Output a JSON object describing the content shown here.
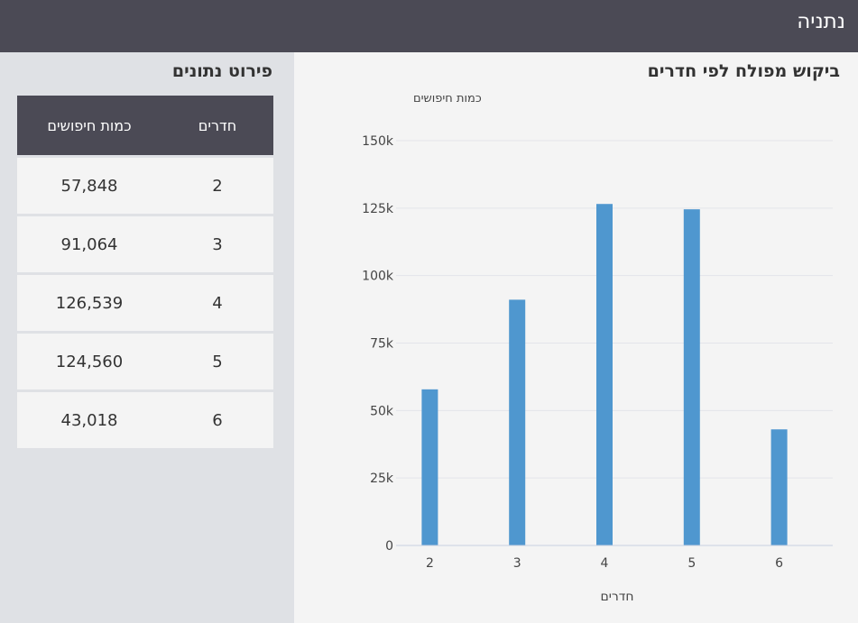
{
  "header": {
    "city": "נתניה"
  },
  "side": {
    "title": "פירוט נתונים",
    "columns": {
      "rooms": "חדרים",
      "count": "כמות חיפושים"
    },
    "rows": [
      {
        "rooms": "2",
        "count": "57,848"
      },
      {
        "rooms": "3",
        "count": "91,064"
      },
      {
        "rooms": "4",
        "count": "126,539"
      },
      {
        "rooms": "5",
        "count": "124,560"
      },
      {
        "rooms": "6",
        "count": "43,018"
      }
    ]
  },
  "chart_data": {
    "type": "bar",
    "title": "ביקוש מפולח לפי חדרים",
    "xlabel": "חדרים",
    "ylabel": "כמות חיפושים",
    "categories": [
      "2",
      "3",
      "4",
      "5",
      "6"
    ],
    "values": [
      57848,
      91064,
      126539,
      124560,
      43018
    ],
    "ylim": [
      0,
      150000
    ],
    "yticks": [
      0,
      25000,
      50000,
      75000,
      100000,
      125000,
      150000
    ],
    "ytick_labels": [
      "0",
      "25k",
      "50k",
      "75k",
      "100k",
      "125k",
      "150k"
    ],
    "grid": true,
    "bar_color": "#4f97cf"
  }
}
